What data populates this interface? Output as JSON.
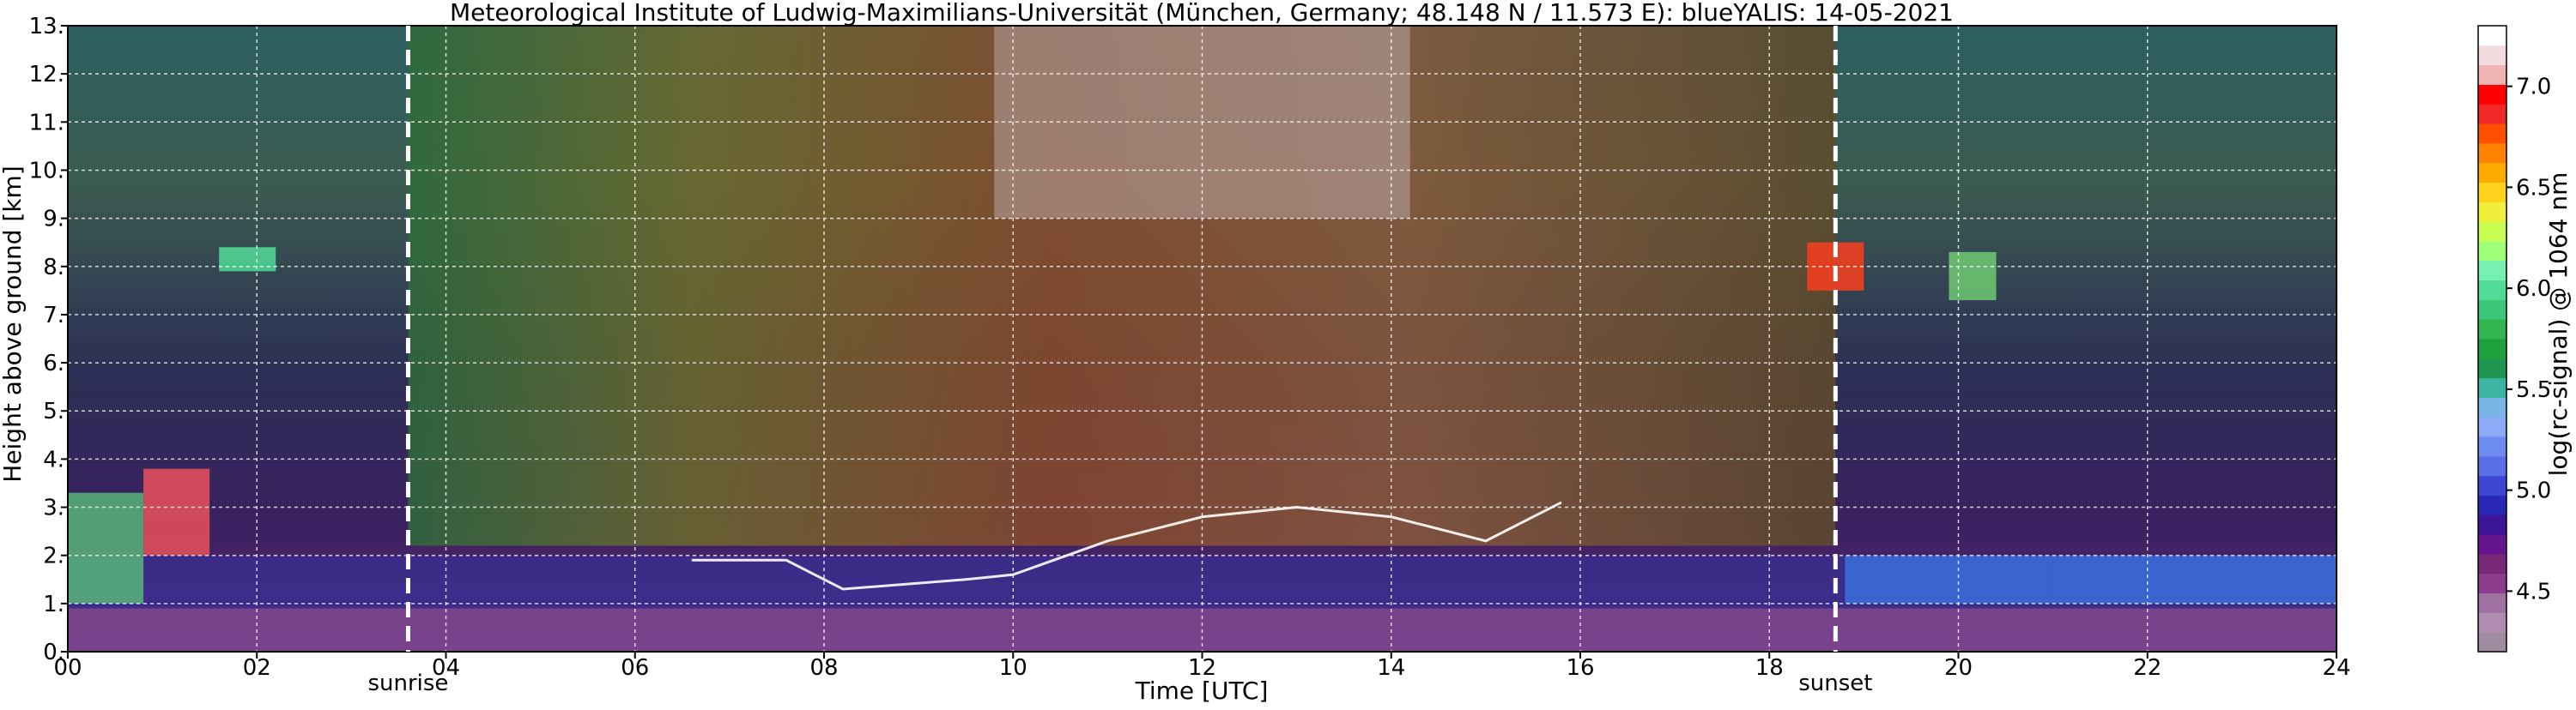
{
  "chart_data": {
    "type": "heatmap",
    "title": "Meteorological Institute of Ludwig-Maximilians-Universität (München, Germany; 48.148 N / 11.573 E):    blueYALIS: 14-05-2021",
    "xlabel": "Time [UTC]",
    "ylabel": "Height above ground [km]",
    "xlim": [
      0,
      24
    ],
    "ylim": [
      0,
      13
    ],
    "x_ticks": [
      {
        "value": 0,
        "label": "00"
      },
      {
        "value": 2,
        "label": "02"
      },
      {
        "value": 4,
        "label": "04"
      },
      {
        "value": 6,
        "label": "06"
      },
      {
        "value": 8,
        "label": "08"
      },
      {
        "value": 10,
        "label": "10"
      },
      {
        "value": 12,
        "label": "12"
      },
      {
        "value": 14,
        "label": "14"
      },
      {
        "value": 16,
        "label": "16"
      },
      {
        "value": 18,
        "label": "18"
      },
      {
        "value": 20,
        "label": "20"
      },
      {
        "value": 22,
        "label": "22"
      },
      {
        "value": 24,
        "label": "24"
      }
    ],
    "y_ticks": [
      {
        "value": 0,
        "label": "0."
      },
      {
        "value": 1,
        "label": "1."
      },
      {
        "value": 2,
        "label": "2."
      },
      {
        "value": 3,
        "label": "3."
      },
      {
        "value": 4,
        "label": "4."
      },
      {
        "value": 5,
        "label": "5."
      },
      {
        "value": 6,
        "label": "6."
      },
      {
        "value": 7,
        "label": "7."
      },
      {
        "value": 8,
        "label": "8."
      },
      {
        "value": 9,
        "label": "9."
      },
      {
        "value": 10,
        "label": "10."
      },
      {
        "value": 11,
        "label": "11."
      },
      {
        "value": 12,
        "label": "12."
      },
      {
        "value": 13,
        "label": "13."
      }
    ],
    "grid": true,
    "sun_markers": [
      {
        "label": "sunrise",
        "time": 3.6
      },
      {
        "label": "sunset",
        "time": 18.7
      }
    ],
    "colorbar": {
      "label": "log(rc-signal) @ 1064 nm",
      "range": [
        4.2,
        7.3
      ],
      "ticks": [
        {
          "value": 4.5,
          "label": "4.5"
        },
        {
          "value": 5.0,
          "label": "5.0"
        },
        {
          "value": 5.5,
          "label": "5.5"
        },
        {
          "value": 6.0,
          "label": "6.0"
        },
        {
          "value": 6.5,
          "label": "6.5"
        },
        {
          "value": 7.0,
          "label": "7.0"
        }
      ],
      "colors": [
        "#a08ca0",
        "#b08cb0",
        "#a070a0",
        "#8c3c8c",
        "#782878",
        "#64148c",
        "#3c1496",
        "#2828b4",
        "#3c46d2",
        "#5a6ee6",
        "#6e8cf0",
        "#8caaf5",
        "#78b4e6",
        "#3cb4a0",
        "#1e9650",
        "#1ea03c",
        "#32b450",
        "#3cc878",
        "#50dc96",
        "#78f0b4",
        "#a0ff78",
        "#c8ff50",
        "#f0f03c",
        "#ffd21e",
        "#ffaa00",
        "#ff8200",
        "#ff5000",
        "#f02828",
        "#ff0000",
        "#f0b4b4",
        "#f0dcdc",
        "#ffffff"
      ]
    }
  }
}
